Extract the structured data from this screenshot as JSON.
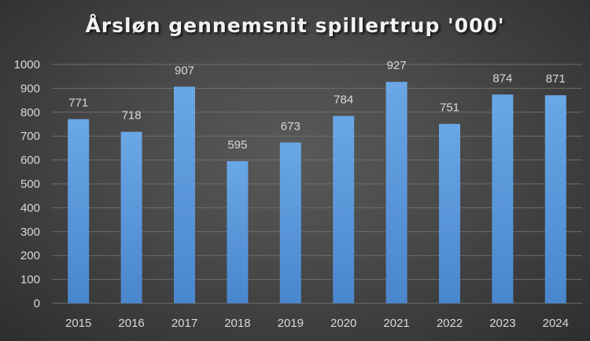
{
  "chart_data": {
    "type": "bar",
    "title": "Årsløn gennemsnit spillertrup '000'",
    "categories": [
      "2015",
      "2016",
      "2017",
      "2018",
      "2019",
      "2020",
      "2021",
      "2022",
      "2023",
      "2024"
    ],
    "values": [
      771,
      718,
      907,
      595,
      673,
      784,
      927,
      751,
      874,
      871
    ],
    "xlabel": "",
    "ylabel": "",
    "ylim": [
      0,
      1000
    ],
    "yticks": [
      "0",
      "100",
      "200",
      "300",
      "400",
      "500",
      "600",
      "700",
      "800",
      "900",
      "1000"
    ],
    "grid": true,
    "data_labels": true,
    "legend": "none",
    "colors": {
      "bar_top": "#6aa7e6",
      "bar_bottom": "#4a86cc",
      "grid": "#6e6e6e",
      "text": "#d9d9d9"
    }
  }
}
